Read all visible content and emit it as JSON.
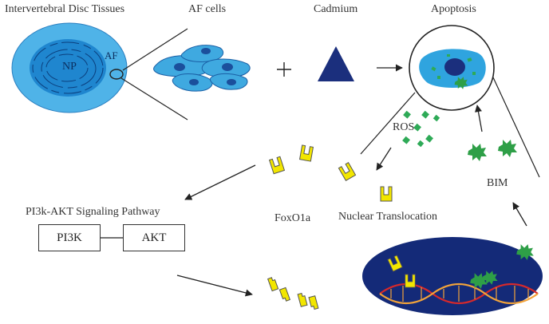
{
  "labels": {
    "disc_tissues": "Intervertebral Disc Tissues",
    "af_cells": "AF cells",
    "cadmium": "Cadmium",
    "apoptosis": "Apoptosis",
    "np": "NP",
    "af": "AF",
    "ros": "ROS",
    "bim": "BIM",
    "pathway": "PI3k-AKT Signaling Pathway",
    "foxo1a": "FoxO1a",
    "nuclear_translocation": "Nuclear Translocation",
    "pi3k": "PI3K",
    "akt": "AKT",
    "plus": "+"
  },
  "colors": {
    "disc_outer": "#4fb3e8",
    "disc_inner": "#1f86cf",
    "cell_body": "#3fa9e0",
    "cell_nucleus": "#1b4f9c",
    "cadmium": "#1b2f7d",
    "nucleus_dark": "#142a78",
    "ros": "#2eaa57",
    "bim": "#2e9f47",
    "foxo1a": "#f2e600",
    "dna_red": "#d6292b",
    "dna_orange": "#f2a33a"
  }
}
